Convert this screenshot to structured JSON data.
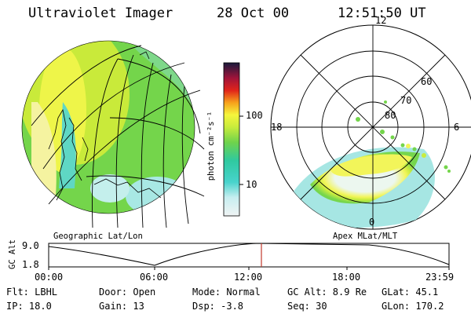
{
  "header": {
    "instrument": "Ultraviolet Imager",
    "date": "28 Oct 00",
    "time": "12:51:50 UT"
  },
  "left_panel": {
    "caption": "Geographic Lat/Lon"
  },
  "right_panel": {
    "caption": "Apex MLat/MLT",
    "mlt_labels": {
      "top": "12",
      "left": "18",
      "right": "6",
      "bottom": "0"
    },
    "lat_labels": [
      "60",
      "70",
      "80"
    ]
  },
  "colorbar": {
    "unit_label": "photon cm⁻²s⁻¹",
    "tick_labels": [
      "100",
      "10"
    ]
  },
  "altitude_plot": {
    "ylabel": "GC Alt",
    "ytick_top": "9.0",
    "ytick_bottom": "1.8",
    "time_ticks": [
      "00:00",
      "06:00",
      "12:00",
      "18:00",
      "23:59"
    ],
    "current_marker_color": "#c0392b"
  },
  "info": {
    "row1": [
      "Flt: LBHL",
      "Door: Open",
      "Mode: Normal",
      "GC Alt: 8.9 Re",
      "GLat:  45.1"
    ],
    "row2": [
      "IP: 18.0",
      "Gain: 13",
      "Dsp:   -3.8",
      "Seq: 30",
      "GLon: 170.2"
    ]
  }
}
